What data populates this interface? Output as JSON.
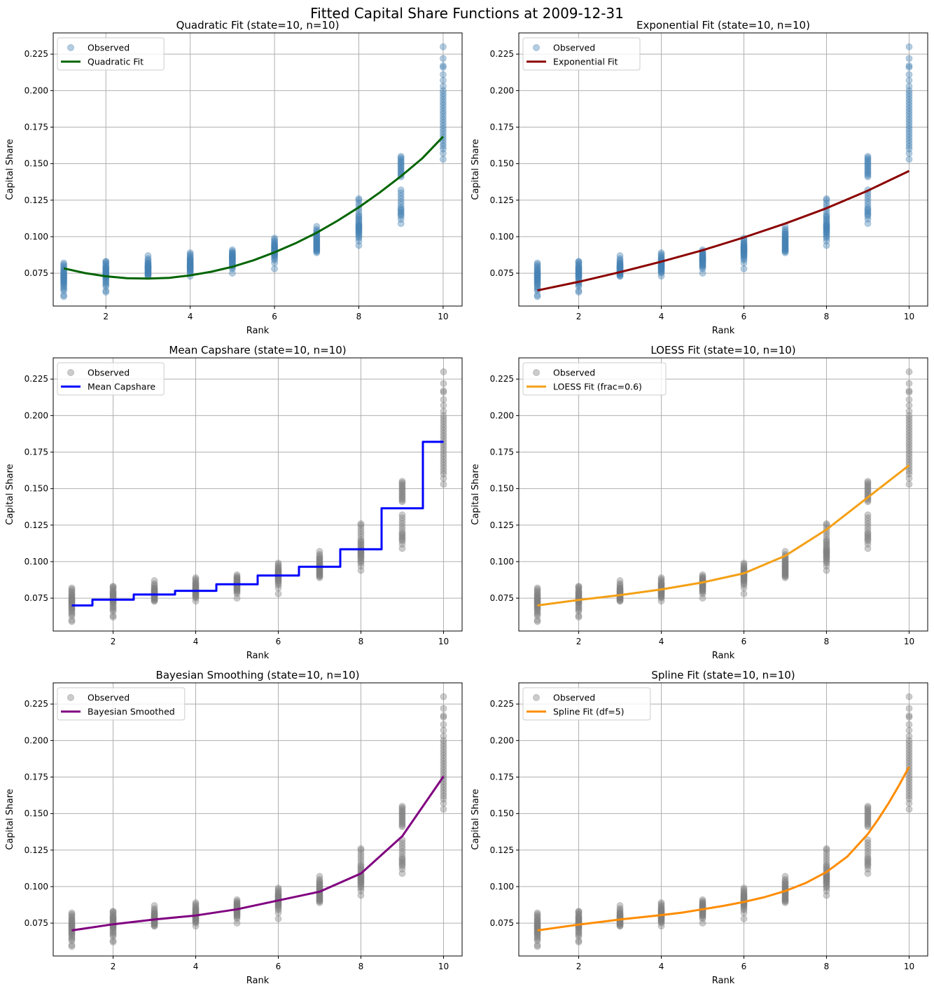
{
  "figure_title": "Fitted Capital Share Functions at 2009-12-31",
  "chart_data": [
    {
      "type": "scatter",
      "title": "Quadratic Fit (state=10, n=10)",
      "xlabel": "Rank",
      "ylabel": "Capital Share",
      "xlim": [
        0.75,
        10.45
      ],
      "ylim": [
        0.0525,
        0.2395
      ],
      "xticks": [
        2,
        4,
        6,
        8,
        10
      ],
      "yticks": [
        0.075,
        0.1,
        0.125,
        0.15,
        0.175,
        0.2,
        0.225
      ],
      "grid": true,
      "legend_position": "top-left",
      "scatter_color": "#4682b4",
      "scatter_opacity": 0.4,
      "scatter_label": "Observed",
      "fit": {
        "label": "Quadratic Fit",
        "color": "#006400",
        "style": "line",
        "x": [
          1,
          1.5,
          2,
          2.5,
          3,
          3.5,
          4,
          4.5,
          5,
          5.5,
          6,
          6.5,
          7,
          7.5,
          8,
          8.5,
          9,
          9.5,
          10
        ],
        "y": [
          0.0783,
          0.0751,
          0.0729,
          0.0716,
          0.0713,
          0.0718,
          0.0735,
          0.076,
          0.0794,
          0.0838,
          0.0893,
          0.0955,
          0.1027,
          0.111,
          0.1201,
          0.1303,
          0.1414,
          0.1535,
          0.1685
        ]
      }
    },
    {
      "type": "scatter",
      "title": "Exponential Fit (state=10, n=10)",
      "xlabel": "Rank",
      "ylabel": "Capital Share",
      "xlim": [
        0.55,
        10.45
      ],
      "ylim": [
        0.0525,
        0.2395
      ],
      "xticks": [
        2,
        4,
        6,
        8,
        10
      ],
      "yticks": [
        0.075,
        0.1,
        0.125,
        0.15,
        0.175,
        0.2,
        0.225
      ],
      "grid": true,
      "legend_position": "top-left",
      "scatter_color": "#4682b4",
      "scatter_opacity": 0.4,
      "scatter_label": "Observed",
      "fit": {
        "label": "Exponential Fit",
        "color": "#8b0000",
        "style": "line",
        "x": [
          1,
          2,
          3,
          4,
          5,
          6,
          7,
          8,
          9,
          10
        ],
        "y": [
          0.0632,
          0.0691,
          0.0757,
          0.0829,
          0.0907,
          0.0995,
          0.109,
          0.1195,
          0.1315,
          0.145
        ]
      }
    },
    {
      "type": "scatter",
      "title": "Mean Capshare (state=10, n=10)",
      "xlabel": "Rank",
      "ylabel": "Capital Share",
      "xlim": [
        0.55,
        10.45
      ],
      "ylim": [
        0.0525,
        0.2395
      ],
      "xticks": [
        2,
        4,
        6,
        8,
        10
      ],
      "yticks": [
        0.075,
        0.1,
        0.125,
        0.15,
        0.175,
        0.2,
        0.225
      ],
      "grid": true,
      "legend_position": "top-left",
      "scatter_color": "#808080",
      "scatter_opacity": 0.4,
      "scatter_label": "Observed",
      "fit": {
        "label": "Mean Capshare",
        "color": "#0000ff",
        "style": "step",
        "x": [
          1,
          2,
          3,
          4,
          5,
          6,
          7,
          8,
          9,
          10
        ],
        "y": [
          0.07,
          0.074,
          0.0775,
          0.08,
          0.0845,
          0.0905,
          0.0965,
          0.1085,
          0.1365,
          0.182
        ]
      }
    },
    {
      "type": "scatter",
      "title": "LOESS Fit (state=10, n=10)",
      "xlabel": "Rank",
      "ylabel": "Capital Share",
      "xlim": [
        0.55,
        10.45
      ],
      "ylim": [
        0.0525,
        0.2395
      ],
      "xticks": [
        2,
        4,
        6,
        8,
        10
      ],
      "yticks": [
        0.075,
        0.1,
        0.125,
        0.15,
        0.175,
        0.2,
        0.225
      ],
      "grid": true,
      "legend_position": "top-left",
      "scatter_color": "#808080",
      "scatter_opacity": 0.4,
      "scatter_label": "Observed",
      "fit": {
        "label": "LOESS Fit (frac=0.6)",
        "color": "#f4a016",
        "style": "line",
        "x": [
          1,
          2,
          3,
          4,
          5,
          6,
          7,
          8,
          9,
          10
        ],
        "y": [
          0.07,
          0.0738,
          0.0771,
          0.081,
          0.0858,
          0.092,
          0.104,
          0.122,
          0.144,
          0.166
        ]
      }
    },
    {
      "type": "scatter",
      "title": "Bayesian Smoothing (state=10, n=10)",
      "xlabel": "Rank",
      "ylabel": "Capital Share",
      "xlim": [
        0.55,
        10.45
      ],
      "ylim": [
        0.0525,
        0.2395
      ],
      "xticks": [
        2,
        4,
        6,
        8,
        10
      ],
      "yticks": [
        0.075,
        0.1,
        0.125,
        0.15,
        0.175,
        0.2,
        0.225
      ],
      "grid": true,
      "legend_position": "top-left",
      "scatter_color": "#808080",
      "scatter_opacity": 0.4,
      "scatter_label": "Observed",
      "fit": {
        "label": "Bayesian Smoothed",
        "color": "#800080",
        "style": "line",
        "x": [
          1,
          2,
          3,
          4,
          5,
          6,
          7,
          8,
          9,
          10
        ],
        "y": [
          0.07,
          0.0742,
          0.0775,
          0.0802,
          0.0845,
          0.0905,
          0.0965,
          0.109,
          0.1345,
          0.1755
        ]
      }
    },
    {
      "type": "scatter",
      "title": "Spline Fit (state=10, n=10)",
      "xlabel": "Rank",
      "ylabel": "Capital Share",
      "xlim": [
        0.55,
        10.45
      ],
      "ylim": [
        0.0525,
        0.2395
      ],
      "xticks": [
        2,
        4,
        6,
        8,
        10
      ],
      "yticks": [
        0.075,
        0.1,
        0.125,
        0.15,
        0.175,
        0.2,
        0.225
      ],
      "grid": true,
      "legend_position": "top-left",
      "scatter_color": "#808080",
      "scatter_opacity": 0.4,
      "scatter_label": "Observed",
      "fit": {
        "label": "Spline Fit (df=5)",
        "color": "#ff8c00",
        "style": "line",
        "x": [
          1,
          1.5,
          2,
          2.5,
          3,
          3.5,
          4,
          4.5,
          5,
          5.5,
          6,
          6.5,
          7,
          7.5,
          8,
          8.5,
          9,
          9.25,
          9.5,
          9.75,
          10
        ],
        "y": [
          0.07,
          0.072,
          0.074,
          0.0757,
          0.0775,
          0.079,
          0.0805,
          0.0822,
          0.0845,
          0.0868,
          0.0895,
          0.0928,
          0.097,
          0.1025,
          0.11,
          0.1205,
          0.136,
          0.146,
          0.157,
          0.169,
          0.182
        ]
      }
    }
  ],
  "observed": {
    "x": [
      1,
      1,
      1,
      1,
      1,
      1,
      1,
      1,
      1,
      1,
      1,
      1,
      1,
      1,
      1,
      1,
      1,
      1,
      1,
      1,
      1,
      1,
      1,
      1,
      1,
      1,
      1,
      1,
      1,
      1,
      2,
      2,
      2,
      2,
      2,
      2,
      2,
      2,
      2,
      2,
      2,
      2,
      2,
      2,
      2,
      2,
      2,
      2,
      2,
      2,
      2,
      2,
      2,
      2,
      2,
      2,
      2,
      2,
      2,
      2,
      3,
      3,
      3,
      3,
      3,
      3,
      3,
      3,
      3,
      3,
      3,
      3,
      3,
      3,
      3,
      3,
      3,
      3,
      3,
      3,
      3,
      3,
      3,
      3,
      3,
      3,
      3,
      3,
      3,
      3,
      4,
      4,
      4,
      4,
      4,
      4,
      4,
      4,
      4,
      4,
      4,
      4,
      4,
      4,
      4,
      4,
      4,
      4,
      4,
      4,
      4,
      4,
      4,
      4,
      4,
      4,
      4,
      4,
      4,
      4,
      5,
      5,
      5,
      5,
      5,
      5,
      5,
      5,
      5,
      5,
      5,
      5,
      5,
      5,
      5,
      5,
      5,
      5,
      5,
      5,
      5,
      5,
      5,
      5,
      5,
      5,
      5,
      5,
      5,
      5,
      6,
      6,
      6,
      6,
      6,
      6,
      6,
      6,
      6,
      6,
      6,
      6,
      6,
      6,
      6,
      6,
      6,
      6,
      6,
      6,
      6,
      6,
      6,
      6,
      6,
      6,
      6,
      6,
      6,
      6,
      7,
      7,
      7,
      7,
      7,
      7,
      7,
      7,
      7,
      7,
      7,
      7,
      7,
      7,
      7,
      7,
      7,
      7,
      7,
      7,
      7,
      7,
      7,
      7,
      7,
      7,
      7,
      7,
      7,
      7,
      8,
      8,
      8,
      8,
      8,
      8,
      8,
      8,
      8,
      8,
      8,
      8,
      8,
      8,
      8,
      8,
      8,
      8,
      8,
      8,
      8,
      8,
      8,
      8,
      8,
      8,
      8,
      8,
      8,
      8,
      9,
      9,
      9,
      9,
      9,
      9,
      9,
      9,
      9,
      9,
      9,
      9,
      9,
      9,
      9,
      9,
      9,
      9,
      9,
      9,
      9,
      9,
      9,
      9,
      9,
      9,
      9,
      9,
      9,
      9,
      10,
      10,
      10,
      10,
      10,
      10,
      10,
      10,
      10,
      10,
      10,
      10,
      10,
      10,
      10,
      10,
      10,
      10,
      10,
      10,
      10,
      10,
      10,
      10,
      10,
      10,
      10,
      10,
      10,
      10
    ],
    "y": [
      0.059,
      0.06,
      0.063,
      0.064,
      0.065,
      0.066,
      0.067,
      0.068,
      0.068,
      0.069,
      0.07,
      0.07,
      0.071,
      0.071,
      0.072,
      0.072,
      0.073,
      0.073,
      0.074,
      0.074,
      0.075,
      0.075,
      0.076,
      0.077,
      0.077,
      0.078,
      0.079,
      0.08,
      0.081,
      0.082,
      0.062,
      0.063,
      0.066,
      0.067,
      0.068,
      0.069,
      0.07,
      0.071,
      0.072,
      0.072,
      0.073,
      0.073,
      0.074,
      0.074,
      0.075,
      0.075,
      0.075,
      0.076,
      0.076,
      0.077,
      0.077,
      0.078,
      0.078,
      0.079,
      0.079,
      0.08,
      0.081,
      0.082,
      0.083,
      0.083,
      0.073,
      0.073,
      0.074,
      0.074,
      0.075,
      0.075,
      0.075,
      0.076,
      0.076,
      0.076,
      0.077,
      0.077,
      0.077,
      0.078,
      0.078,
      0.078,
      0.079,
      0.079,
      0.079,
      0.08,
      0.08,
      0.08,
      0.081,
      0.081,
      0.082,
      0.082,
      0.083,
      0.084,
      0.085,
      0.087,
      0.073,
      0.075,
      0.076,
      0.076,
      0.077,
      0.077,
      0.078,
      0.078,
      0.079,
      0.079,
      0.079,
      0.08,
      0.08,
      0.08,
      0.081,
      0.081,
      0.081,
      0.082,
      0.082,
      0.082,
      0.083,
      0.083,
      0.084,
      0.084,
      0.085,
      0.085,
      0.086,
      0.087,
      0.088,
      0.089,
      0.075,
      0.078,
      0.079,
      0.08,
      0.08,
      0.081,
      0.081,
      0.082,
      0.082,
      0.083,
      0.083,
      0.083,
      0.084,
      0.084,
      0.084,
      0.085,
      0.085,
      0.085,
      0.086,
      0.086,
      0.086,
      0.087,
      0.087,
      0.087,
      0.088,
      0.088,
      0.089,
      0.089,
      0.09,
      0.091,
      0.078,
      0.082,
      0.084,
      0.085,
      0.086,
      0.087,
      0.087,
      0.088,
      0.088,
      0.089,
      0.089,
      0.09,
      0.09,
      0.09,
      0.091,
      0.091,
      0.091,
      0.092,
      0.092,
      0.093,
      0.093,
      0.093,
      0.094,
      0.094,
      0.095,
      0.095,
      0.096,
      0.097,
      0.098,
      0.099,
      0.089,
      0.09,
      0.09,
      0.091,
      0.091,
      0.092,
      0.092,
      0.093,
      0.093,
      0.094,
      0.094,
      0.095,
      0.095,
      0.096,
      0.096,
      0.097,
      0.097,
      0.098,
      0.098,
      0.099,
      0.099,
      0.1,
      0.1,
      0.101,
      0.102,
      0.102,
      0.103,
      0.104,
      0.105,
      0.107,
      0.094,
      0.097,
      0.099,
      0.1,
      0.101,
      0.102,
      0.103,
      0.103,
      0.104,
      0.105,
      0.105,
      0.106,
      0.106,
      0.107,
      0.107,
      0.108,
      0.108,
      0.109,
      0.11,
      0.111,
      0.112,
      0.113,
      0.114,
      0.115,
      0.117,
      0.119,
      0.121,
      0.123,
      0.125,
      0.126,
      0.109,
      0.112,
      0.114,
      0.115,
      0.116,
      0.117,
      0.118,
      0.119,
      0.12,
      0.122,
      0.124,
      0.126,
      0.128,
      0.13,
      0.132,
      0.141,
      0.142,
      0.143,
      0.144,
      0.145,
      0.146,
      0.147,
      0.148,
      0.149,
      0.15,
      0.151,
      0.152,
      0.153,
      0.154,
      0.155,
      0.153,
      0.157,
      0.16,
      0.162,
      0.164,
      0.166,
      0.168,
      0.17,
      0.172,
      0.174,
      0.176,
      0.178,
      0.18,
      0.182,
      0.184,
      0.186,
      0.188,
      0.19,
      0.192,
      0.194,
      0.196,
      0.198,
      0.2,
      0.203,
      0.207,
      0.211,
      0.216,
      0.217,
      0.222,
      0.23
    ]
  }
}
